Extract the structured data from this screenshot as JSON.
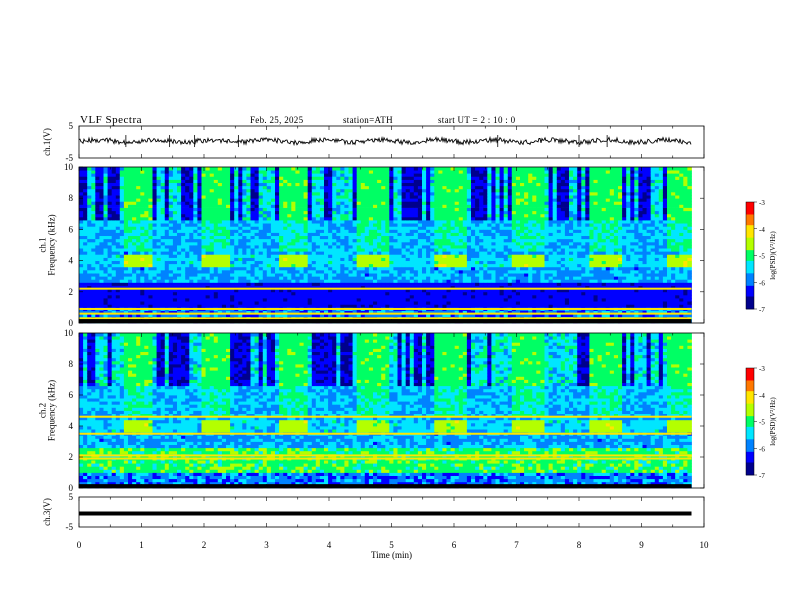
{
  "header": {
    "title": "VLF  Spectra",
    "date": "Feb. 25, 2025",
    "station": "station=ATH",
    "start": "start  UT  =   2  : 10 : 0"
  },
  "colors": {
    "colormap": [
      "#00008c",
      "#0000ff",
      "#0082ff",
      "#00e6ff",
      "#00ff64",
      "#b4ff00",
      "#ffe600",
      "#ff7800",
      "#ff0000",
      "#ffffff"
    ],
    "axis": "#000000",
    "background": "#ffffff"
  },
  "chart_data": [
    {
      "type": "line",
      "panel": "ch1-waveform",
      "ylabel": "ch.1(V)",
      "yticklabels": [
        "5",
        "-5"
      ],
      "ylim": [
        -5,
        5
      ],
      "xlim": [
        0,
        10
      ],
      "trace_extent_min": [
        0,
        9.8
      ],
      "approx_level_V": 0.3
    },
    {
      "type": "heatmap",
      "panel": "ch1-spectrogram",
      "ylabel": "ch.1\nFrequency  (kHz)",
      "yticks": [
        0,
        2,
        4,
        6,
        8,
        10
      ],
      "yticklabels": [
        "0",
        "2",
        "4",
        "6",
        "8",
        "10"
      ],
      "ylim": [
        0,
        10
      ],
      "xlim": [
        0,
        10
      ],
      "data_extent_min": [
        0,
        9.8
      ],
      "colorbar": {
        "label": "log(PSD)(V²/Hz)",
        "ticks": [
          -3,
          -4,
          -5,
          -6,
          -7
        ],
        "ticklabels": [
          "-3",
          "-4",
          "-5",
          "-6",
          "-7"
        ],
        "range": [
          -7,
          -3
        ]
      },
      "features": {
        "bursts_kHz": [
          3.6,
          4.3
        ],
        "burst_period_min": 1.25,
        "strong_lines_kHz": [
          2.2,
          0.9,
          0.6,
          0.3
        ]
      }
    },
    {
      "type": "heatmap",
      "panel": "ch2-spectrogram",
      "ylabel": "ch.2\nFrequency  (kHz)",
      "yticks": [
        0,
        2,
        4,
        6,
        8,
        10
      ],
      "yticklabels": [
        "0",
        "2",
        "4",
        "6",
        "8",
        "10"
      ],
      "ylim": [
        0,
        10
      ],
      "xlim": [
        0,
        10
      ],
      "data_extent_min": [
        0,
        9.8
      ],
      "colorbar": {
        "label": "log(PSD)(V²/Hz)",
        "ticks": [
          -3,
          -4,
          -5,
          -6,
          -7
        ],
        "ticklabels": [
          "-3",
          "-4",
          "-5",
          "-6",
          "-7"
        ],
        "range": [
          -7,
          -3
        ]
      },
      "features": {
        "bursts_kHz": [
          3.6,
          4.3
        ],
        "burst_period_min": 1.25,
        "strong_lines_kHz": [
          2.1,
          1.9,
          3.5,
          4.6
        ]
      }
    },
    {
      "type": "line",
      "panel": "ch3-waveform",
      "ylabel": "ch.3(V)",
      "yticklabels": [
        "5",
        "-5"
      ],
      "ylim": [
        -5,
        5
      ],
      "xlim": [
        0,
        10
      ],
      "trace_extent_min": [
        0,
        9.8
      ],
      "approx_level_V": -0.5,
      "xlabel": "Time  (min)",
      "xticks": [
        0,
        1,
        2,
        3,
        4,
        5,
        6,
        7,
        8,
        9,
        10
      ],
      "xticklabels": [
        "0",
        "1",
        "2",
        "3",
        "4",
        "5",
        "6",
        "7",
        "8",
        "9",
        "10"
      ]
    }
  ]
}
